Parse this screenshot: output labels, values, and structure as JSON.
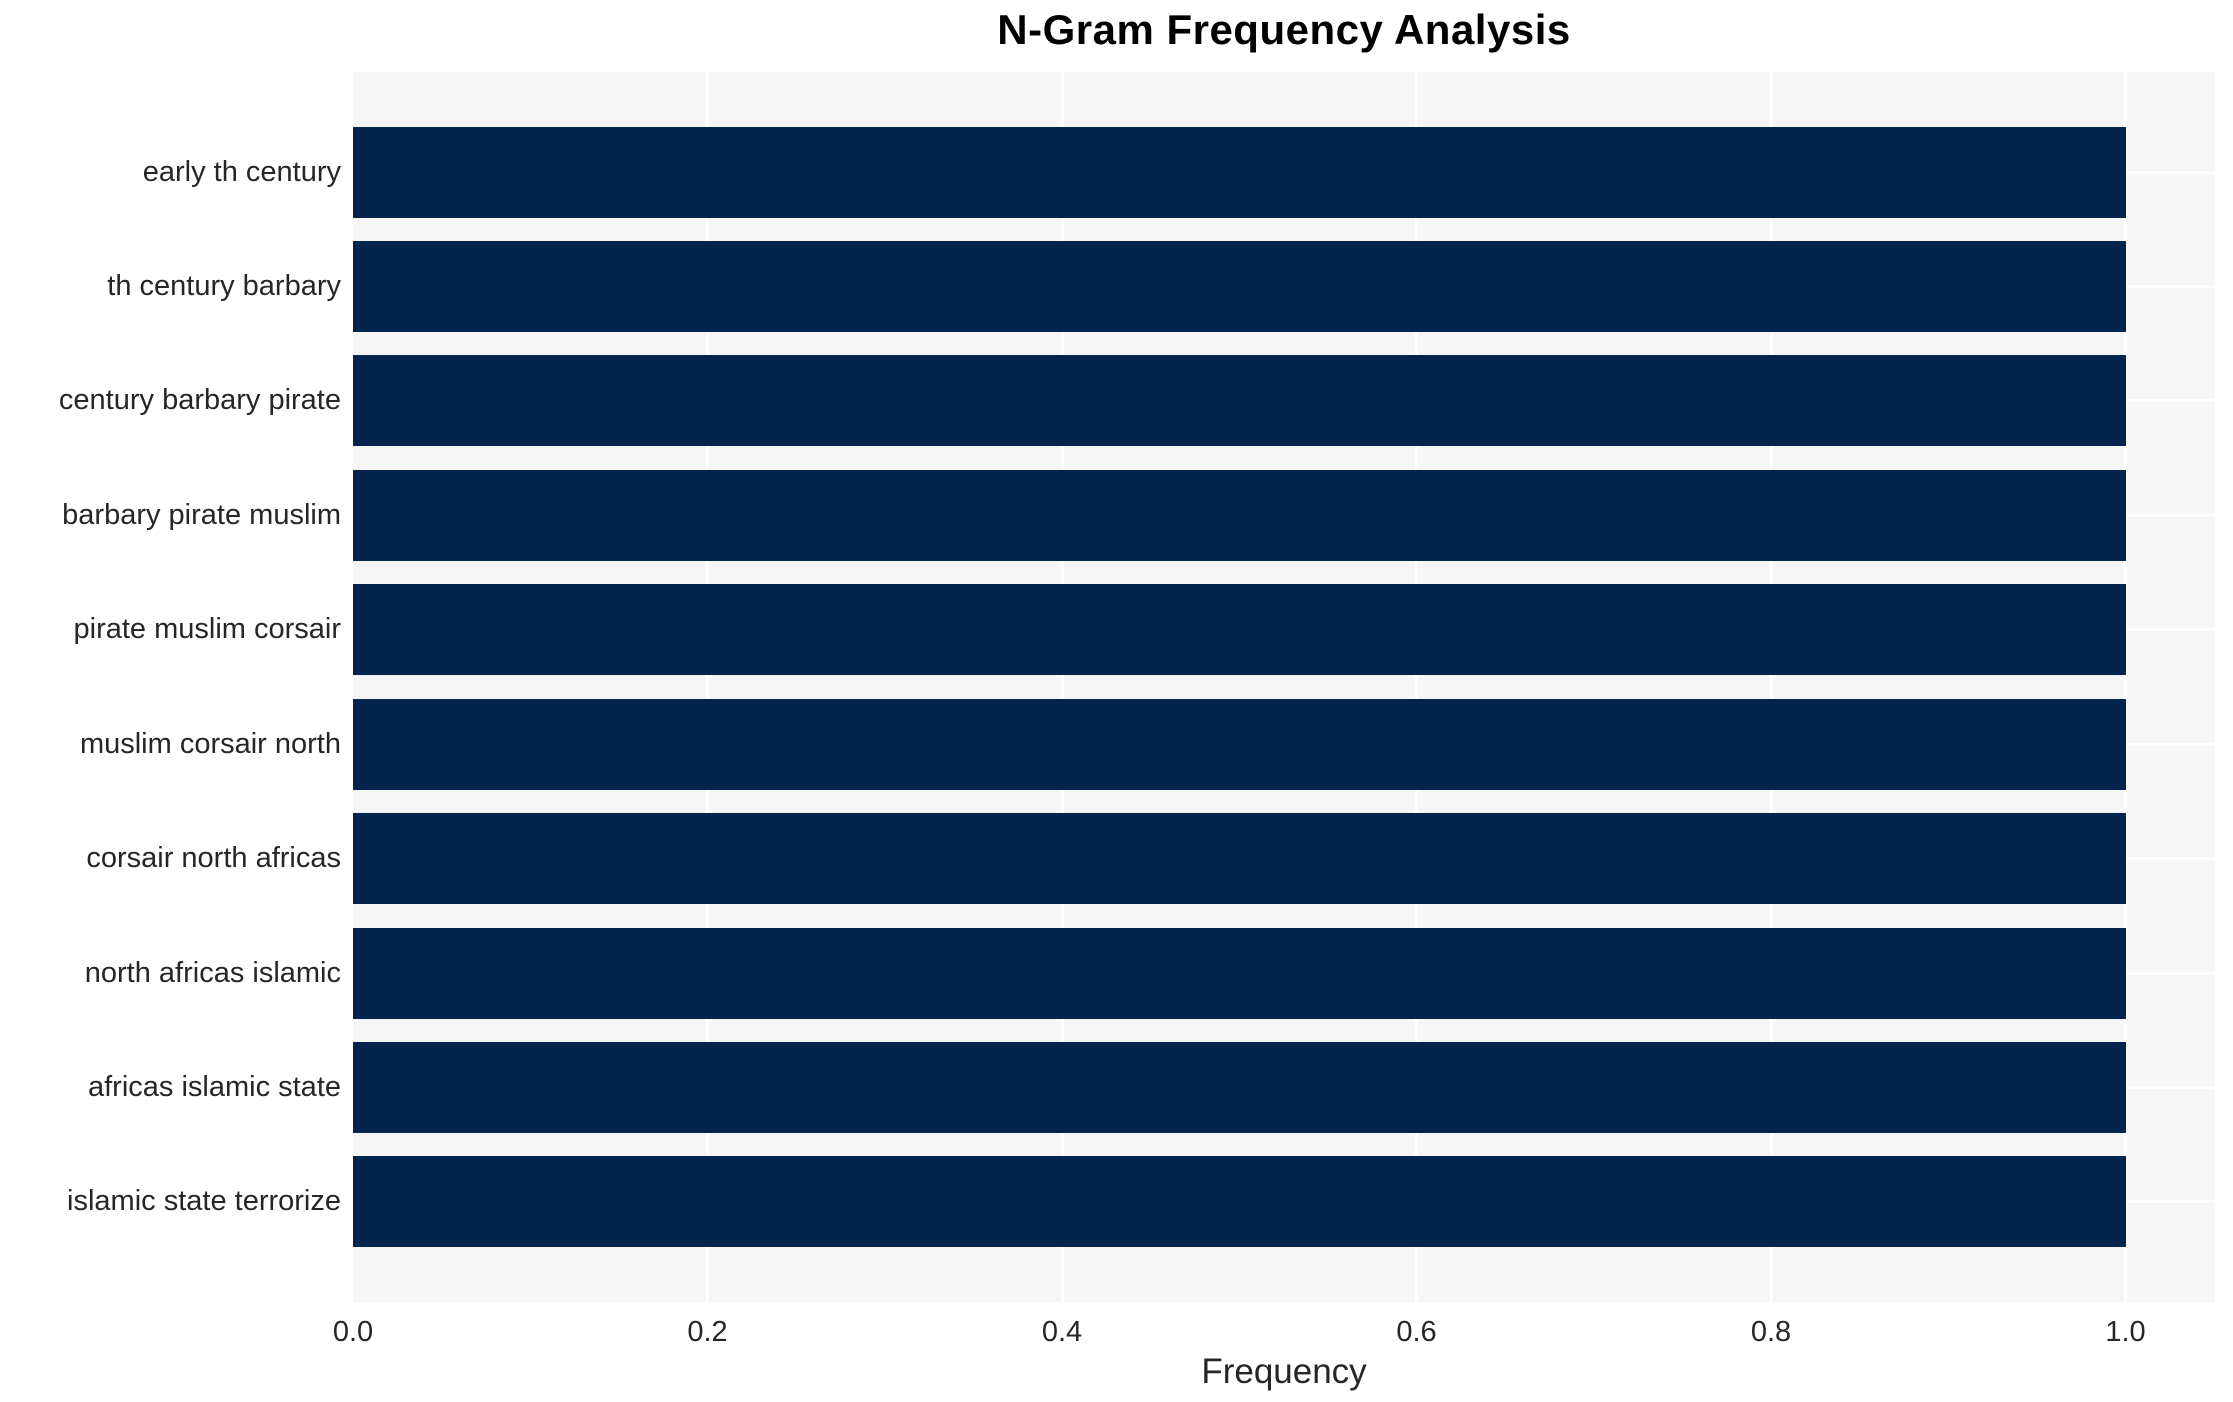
{
  "title": "N-Gram Frequency Analysis",
  "chart_data": {
    "type": "bar",
    "orientation": "horizontal",
    "title": "N-Gram Frequency Analysis",
    "categories": [
      "early th century",
      "th century barbary",
      "century barbary pirate",
      "barbary pirate muslim",
      "pirate muslim corsair",
      "muslim corsair north",
      "corsair north africas",
      "north africas islamic",
      "africas islamic state",
      "islamic state terrorize"
    ],
    "values": [
      1.0,
      1.0,
      1.0,
      1.0,
      1.0,
      1.0,
      1.0,
      1.0,
      1.0,
      1.0
    ],
    "xlabel": "Frequency",
    "ylabel": "",
    "xlim": [
      0.0,
      1.05
    ],
    "x_ticks": [
      0.0,
      0.2,
      0.4,
      0.6,
      0.8,
      1.0
    ],
    "x_tick_labels": [
      "0.0",
      "0.2",
      "0.4",
      "0.6",
      "0.8",
      "1.0"
    ],
    "grid": true,
    "legend": "none",
    "colors": {
      "bar": "#03244d",
      "plot_background": "#f6f6f7",
      "gridline": "#ffffff",
      "tick_text": "#262626",
      "title_text": "#000000"
    }
  }
}
